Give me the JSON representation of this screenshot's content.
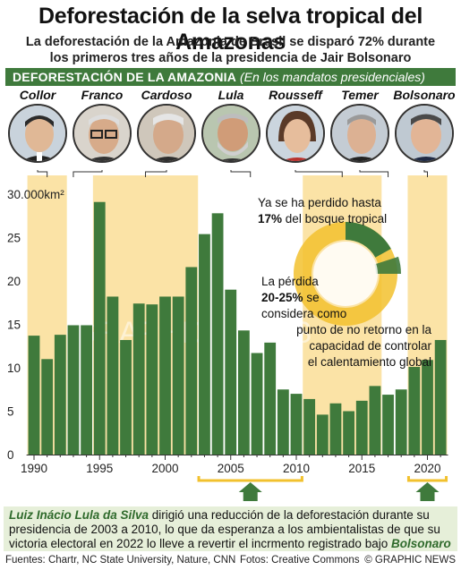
{
  "header": {
    "title": "Deforestación de la selva tropical del Amazonas",
    "subtitle_line1": "La deforestación de la Amazonia de Brasil se disparó 72% durante",
    "subtitle_line2": "los primeros tres años de la presidencia de Jair Bolsonaro"
  },
  "banner": {
    "label": "DEFORESTACIÓN DE LA AMAZONIA",
    "note": "(En los mandatos presidenciales)"
  },
  "presidents": [
    {
      "name": "Collor",
      "term_start": 1990,
      "term_end": 1992
    },
    {
      "name": "Franco",
      "term_start": 1992,
      "term_end": 1994
    },
    {
      "name": "Cardoso",
      "term_start": 1995,
      "term_end": 2002
    },
    {
      "name": "Lula",
      "term_start": 2003,
      "term_end": 2010
    },
    {
      "name": "Rousseff",
      "term_start": 2011,
      "term_end": 2016
    },
    {
      "name": "Temer",
      "term_start": 2016,
      "term_end": 2018
    },
    {
      "name": "Bolsonaro",
      "term_start": 2019,
      "term_end": 2021
    }
  ],
  "notes": {
    "lost_pre": "Ya se ha perdido hasta",
    "lost_bold": "17%",
    "lost_post": "del bosque tropical",
    "loss_line1": "La pérdida",
    "loss_bold": "20-25%",
    "loss_line2": "se",
    "loss_line3": "considera como",
    "loss_line4": "punto de no retorno en la",
    "loss_line5": "capacidad de controlar",
    "loss_line6": "el calentamiento global"
  },
  "donut": {
    "lost_fraction": 0.17,
    "threshold_low": 0.2,
    "threshold_high": 0.25
  },
  "watermark": "GRAPHIC NEWS",
  "footer": {
    "name": "Luiz Inácio Lula da Silva",
    "text1": " dirigió una reducción de la deforestación durante su",
    "text2": "presidencia de 2003 a 2010, lo que da esperanza a los ambientalistas de que su",
    "text3": "victoria electoral en 2022 lo lleve a revertir el incrmento registrado bajo ",
    "name2": "Bolsonaro",
    "sources": "Fuentes: Chartr, NC State University, Nature, CNN",
    "photos": "Fotos: Creative Commons",
    "brand": "© GRAPHIC NEWS"
  },
  "colors": {
    "bar": "#3f7a3c",
    "band": "#fbe3a6",
    "accent_yellow": "#f2c12e",
    "banner": "#3f7a3c",
    "footer_bg": "#e6efd9"
  },
  "chart_data": {
    "type": "bar",
    "x": [
      1990,
      1991,
      1992,
      1993,
      1994,
      1995,
      1996,
      1997,
      1998,
      1999,
      2000,
      2001,
      2002,
      2003,
      2004,
      2005,
      2006,
      2007,
      2008,
      2009,
      2010,
      2011,
      2012,
      2013,
      2014,
      2015,
      2016,
      2017,
      2018,
      2019,
      2020,
      2021
    ],
    "values": [
      13.7,
      11.0,
      13.8,
      14.9,
      14.9,
      29.1,
      18.2,
      13.2,
      17.4,
      17.3,
      18.2,
      18.2,
      21.6,
      25.4,
      27.8,
      19.0,
      14.3,
      11.7,
      12.9,
      7.5,
      7.0,
      6.4,
      4.6,
      5.9,
      5.0,
      6.2,
      7.9,
      6.9,
      7.5,
      10.1,
      10.9,
      13.2
    ],
    "y_ticks": [
      "30.000km²",
      "25",
      "20",
      "15",
      "10",
      "5",
      "0"
    ],
    "y_tick_values": [
      30,
      25,
      20,
      15,
      10,
      5,
      0
    ],
    "x_ticks": [
      1990,
      1995,
      2000,
      2005,
      2010,
      2015,
      2020
    ],
    "ylim": [
      0,
      30
    ],
    "highlight_ranges": [
      [
        2003,
        2010
      ],
      [
        2019,
        2021
      ]
    ],
    "grid": false
  }
}
